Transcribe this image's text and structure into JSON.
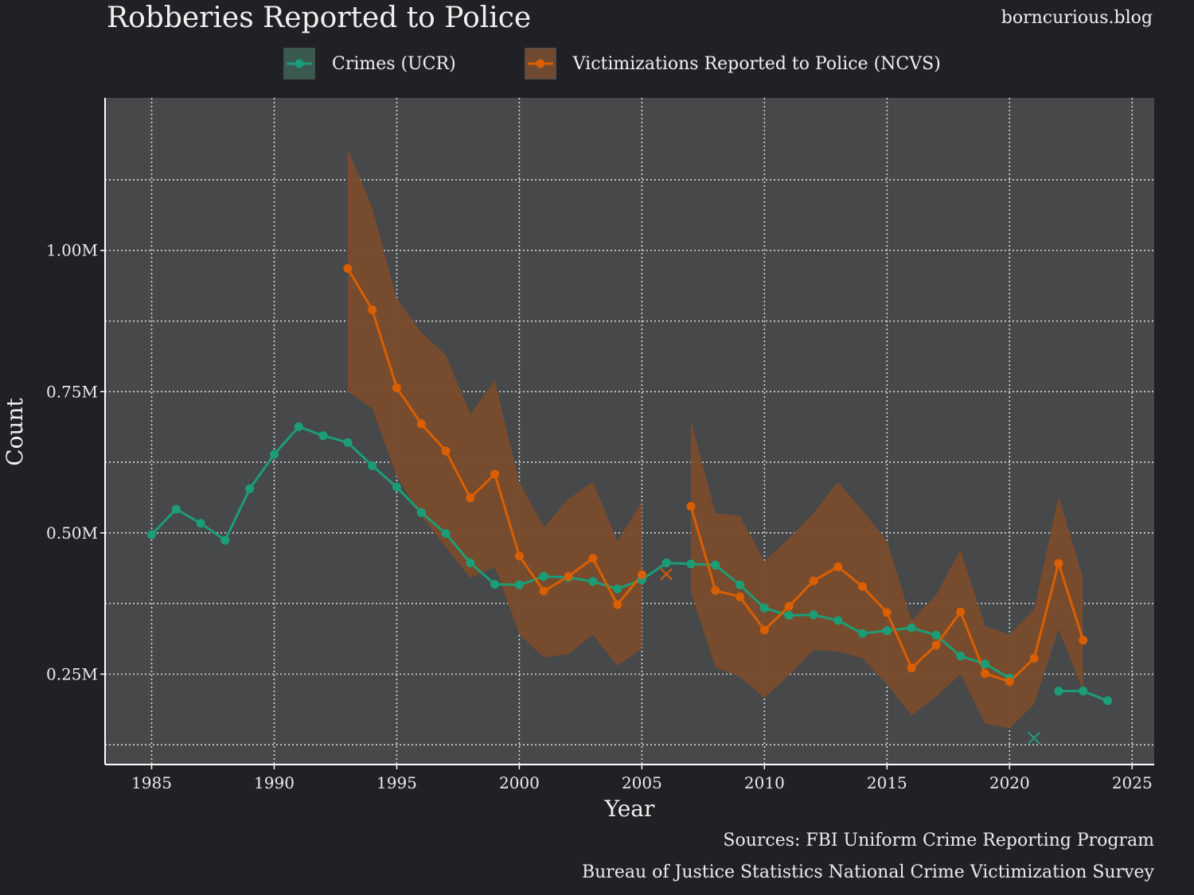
{
  "header": {
    "title": "Robberies Reported to Police",
    "site": "borncurious.blog"
  },
  "footer": {
    "source_line1": "Sources: FBI Uniform Crime Reporting Program",
    "source_line2": "Bureau of Justice Statistics National Crime Victimization Survey"
  },
  "colors": {
    "background": "#202124",
    "panel": "#47484a",
    "ucr": "#1b9e77",
    "ncvs": "#d95f02",
    "ncvs_band": "#7a4c2c",
    "grid": "#d9d9d9"
  },
  "chart_data": {
    "type": "line",
    "title": "Robberies Reported to Police",
    "xlabel": "Year",
    "ylabel": "Count",
    "xlim": [
      1983.1,
      2025.9
    ],
    "ylim": [
      90000,
      1270000
    ],
    "x_ticks": [
      1985,
      1990,
      1995,
      2000,
      2005,
      2010,
      2015,
      2020,
      2025
    ],
    "x_tick_labels": [
      "1985",
      "1990",
      "1995",
      "2000",
      "2005",
      "2010",
      "2015",
      "2020",
      "2025"
    ],
    "y_ticks": [
      250000,
      500000,
      750000,
      1000000
    ],
    "y_tick_labels": [
      "0.25M",
      "0.50M",
      "0.75M",
      "1.00M"
    ],
    "y_minor_ticks": [
      125000,
      375000,
      625000,
      875000,
      1125000
    ],
    "grid": true,
    "legend_position": "top",
    "series": [
      {
        "name": "Crimes (UCR)",
        "color": "#1b9e77",
        "segments": [
          [
            [
              1985,
              497000
            ],
            [
              1986,
              542000
            ],
            [
              1987,
              517000
            ],
            [
              1988,
              487000
            ],
            [
              1989,
              578000
            ],
            [
              1990,
              639000
            ],
            [
              1991,
              688000
            ],
            [
              1992,
              672000
            ],
            [
              1993,
              660000
            ],
            [
              1994,
              619000
            ],
            [
              1995,
              581000
            ],
            [
              1996,
              536000
            ],
            [
              1997,
              499000
            ],
            [
              1998,
              447000
            ],
            [
              1999,
              409000
            ],
            [
              2000,
              408000
            ],
            [
              2001,
              423000
            ],
            [
              2002,
              421000
            ],
            [
              2003,
              414000
            ],
            [
              2004,
              401000
            ],
            [
              2005,
              417000
            ],
            [
              2006,
              447000
            ],
            [
              2007,
              445000
            ],
            [
              2008,
              443000
            ],
            [
              2009,
              408000
            ],
            [
              2010,
              367000
            ],
            [
              2011,
              354000
            ],
            [
              2012,
              355000
            ],
            [
              2013,
              345000
            ],
            [
              2014,
              322000
            ],
            [
              2015,
              327000
            ],
            [
              2016,
              332000
            ],
            [
              2017,
              319000
            ],
            [
              2018,
              282000
            ],
            [
              2019,
              268000
            ],
            [
              2020,
              243000
            ]
          ],
          [
            [
              2022,
              220000
            ],
            [
              2023,
              220000
            ],
            [
              2024,
              203000
            ]
          ]
        ],
        "outliers": [
          [
            2021,
            137000
          ]
        ]
      },
      {
        "name": "Victimizations Reported to Police (NCVS)",
        "color": "#d95f02",
        "segments": [
          [
            [
              1993,
              968000
            ],
            [
              1994,
              895000
            ],
            [
              1995,
              757000
            ],
            [
              1996,
              693000
            ],
            [
              1997,
              645000
            ],
            [
              1998,
              562000
            ],
            [
              1999,
              604000
            ],
            [
              2000,
              459000
            ],
            [
              2001,
              397000
            ],
            [
              2002,
              423000
            ],
            [
              2003,
              455000
            ],
            [
              2004,
              373000
            ],
            [
              2005,
              426000
            ]
          ],
          [
            [
              2007,
              547000
            ],
            [
              2008,
              398000
            ],
            [
              2009,
              387000
            ],
            [
              2010,
              328000
            ],
            [
              2011,
              370000
            ],
            [
              2012,
              415000
            ],
            [
              2013,
              440000
            ],
            [
              2014,
              405000
            ],
            [
              2015,
              359000
            ],
            [
              2016,
              261000
            ],
            [
              2017,
              301000
            ],
            [
              2018,
              360000
            ],
            [
              2019,
              251000
            ],
            [
              2020,
              237000
            ],
            [
              2021,
              278000
            ],
            [
              2022,
              446000
            ],
            [
              2023,
              310000
            ]
          ]
        ],
        "outliers": [
          [
            2006,
            427000
          ]
        ],
        "confidence_band": [
          [
            [
              1993,
              750000,
              1180000
            ],
            [
              1994,
              720000,
              1075000
            ],
            [
              1995,
              600000,
              915000
            ],
            [
              1996,
              530000,
              855000
            ],
            [
              1997,
              475000,
              815000
            ],
            [
              1998,
              420000,
              710000
            ],
            [
              1999,
              440000,
              770000
            ],
            [
              2000,
              320000,
              590000
            ],
            [
              2001,
              280000,
              510000
            ],
            [
              2002,
              285000,
              560000
            ],
            [
              2003,
              320000,
              590000
            ],
            [
              2004,
              265000,
              485000
            ],
            [
              2005,
              295000,
              555000
            ]
          ],
          [
            [
              2007,
              395000,
              700000
            ],
            [
              2008,
              262000,
              535000
            ],
            [
              2009,
              245000,
              530000
            ],
            [
              2010,
              208000,
              450000
            ],
            [
              2011,
              248000,
              490000
            ],
            [
              2012,
              293000,
              535000
            ],
            [
              2013,
              290000,
              590000
            ],
            [
              2014,
              278000,
              540000
            ],
            [
              2015,
              232000,
              485000
            ],
            [
              2016,
              177000,
              345000
            ],
            [
              2017,
              210000,
              390000
            ],
            [
              2018,
              250000,
              470000
            ],
            [
              2019,
              162000,
              335000
            ],
            [
              2020,
              154000,
              320000
            ],
            [
              2021,
              197000,
              365000
            ],
            [
              2022,
              330000,
              565000
            ],
            [
              2023,
              220000,
              420000
            ]
          ]
        ]
      }
    ]
  }
}
